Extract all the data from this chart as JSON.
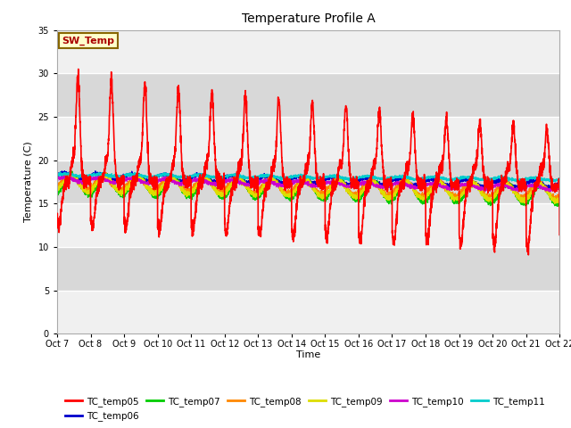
{
  "title": "Temperature Profile A",
  "xlabel": "Time",
  "ylabel": "Temperature (C)",
  "ylim": [
    0,
    35
  ],
  "yticks": [
    0,
    5,
    10,
    15,
    20,
    25,
    30,
    35
  ],
  "x_labels": [
    "Oct 7",
    "Oct 8",
    "Oct 9",
    "Oct 10",
    "Oct 11",
    "Oct 12",
    "Oct 13",
    "Oct 14",
    "Oct 15",
    "Oct 16",
    "Oct 17",
    "Oct 18",
    "Oct 19",
    "Oct 20",
    "Oct 21",
    "Oct 22"
  ],
  "sw_temp_label": "SW_Temp",
  "sw_temp_color": "#aa0000",
  "sw_temp_bg": "#ffffcc",
  "sw_temp_edge": "#886600",
  "fig_bg": "#ffffff",
  "plot_bg_light": "#f0f0f0",
  "plot_bg_dark": "#d8d8d8",
  "grid_color": "#ffffff",
  "series": [
    {
      "name": "TC_temp05",
      "color": "#ff0000"
    },
    {
      "name": "TC_temp06",
      "color": "#0000cc"
    },
    {
      "name": "TC_temp07",
      "color": "#00cc00"
    },
    {
      "name": "TC_temp08",
      "color": "#ff8800"
    },
    {
      "name": "TC_temp09",
      "color": "#dddd00"
    },
    {
      "name": "TC_temp10",
      "color": "#cc00cc"
    },
    {
      "name": "TC_temp11",
      "color": "#00cccc"
    }
  ],
  "n_days": 15,
  "pts_per_day": 240
}
